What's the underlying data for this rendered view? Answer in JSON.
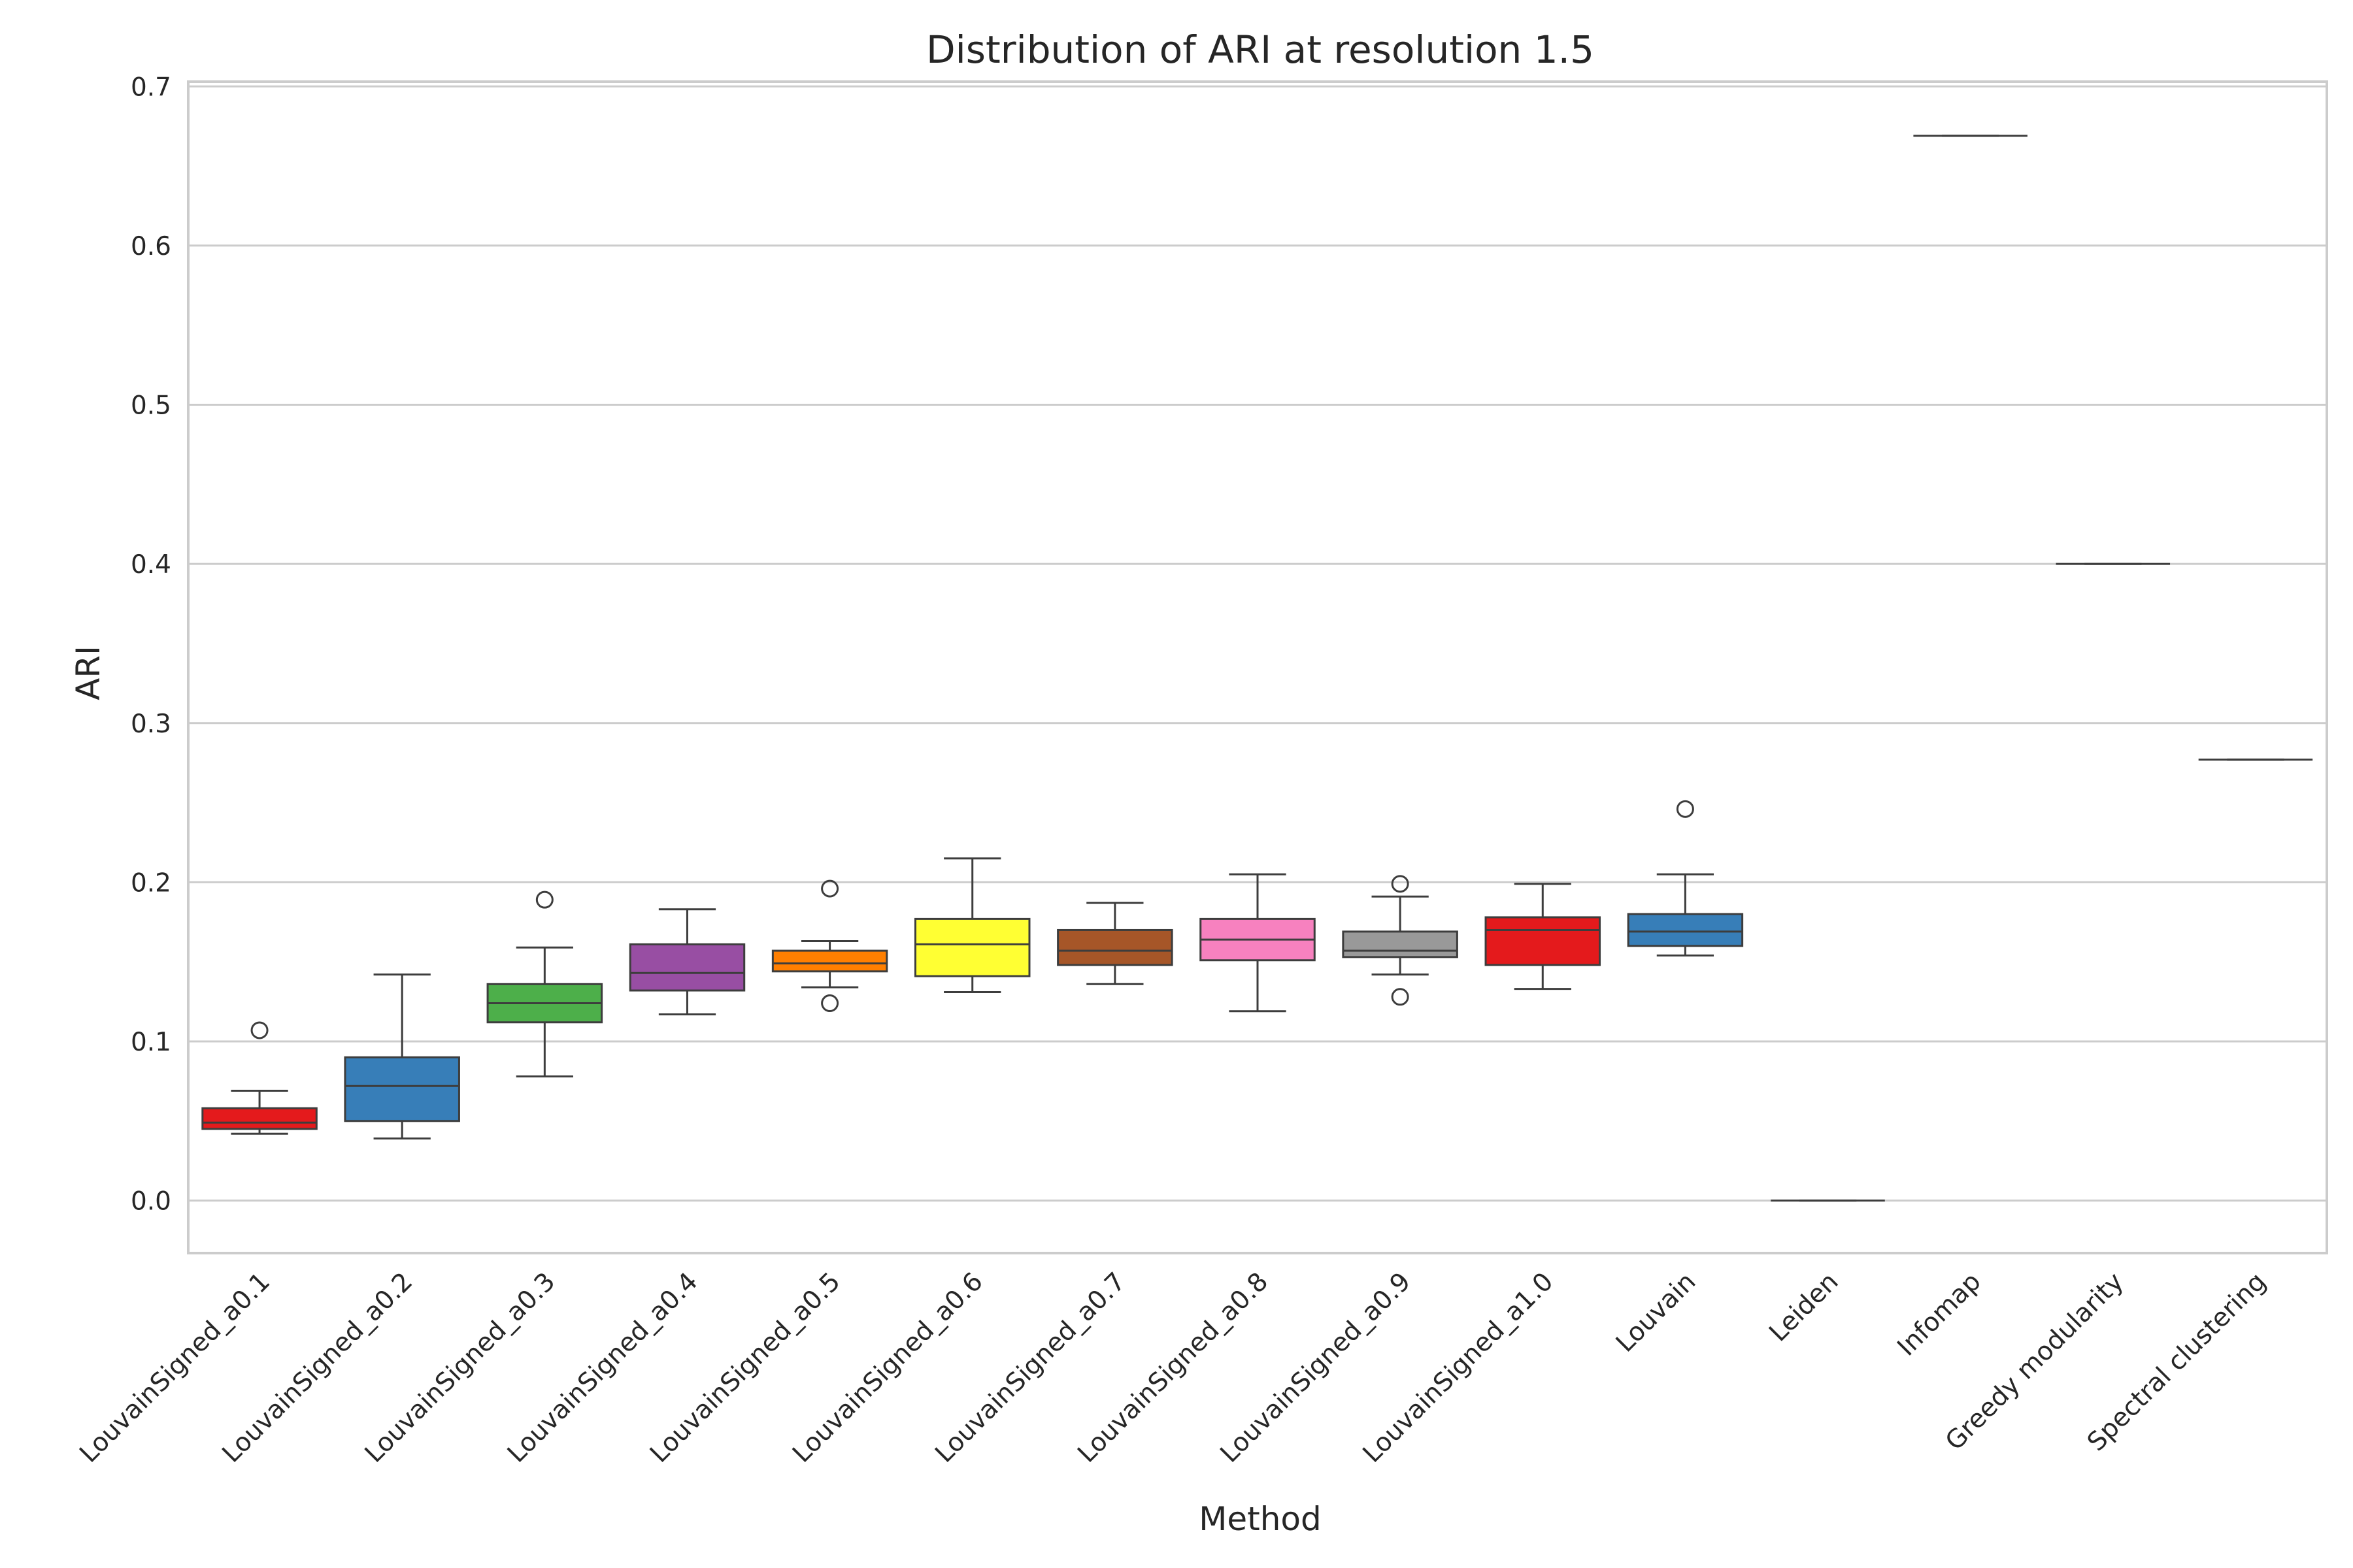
{
  "chart_data": {
    "type": "box",
    "title": "Distribution of ARI at resolution 1.5",
    "xlabel": "Method",
    "ylabel": "ARI",
    "ylim": [
      -0.033,
      0.703
    ],
    "yticks": [
      0.0,
      0.1,
      0.2,
      0.3,
      0.4,
      0.5,
      0.6,
      0.7
    ],
    "ytick_labels": [
      "0.0",
      "0.1",
      "0.2",
      "0.3",
      "0.4",
      "0.5",
      "0.6",
      "0.7"
    ],
    "grid": "horizontal",
    "categories": [
      "LouvainSigned_a0.1",
      "LouvainSigned_a0.2",
      "LouvainSigned_a0.3",
      "LouvainSigned_a0.4",
      "LouvainSigned_a0.5",
      "LouvainSigned_a0.6",
      "LouvainSigned_a0.7",
      "LouvainSigned_a0.8",
      "LouvainSigned_a0.9",
      "LouvainSigned_a1.0",
      "Louvain",
      "Leiden",
      "Infomap",
      "Greedy modularity",
      "Spectral clustering"
    ],
    "boxes": [
      {
        "min": 0.042,
        "q1": 0.045,
        "median": 0.049,
        "q3": 0.058,
        "max": 0.069,
        "outliers": [
          0.107
        ],
        "color": "#e41a1c"
      },
      {
        "min": 0.039,
        "q1": 0.05,
        "median": 0.072,
        "q3": 0.09,
        "max": 0.142,
        "outliers": [],
        "color": "#377eb8"
      },
      {
        "min": 0.078,
        "q1": 0.112,
        "median": 0.124,
        "q3": 0.136,
        "max": 0.159,
        "outliers": [
          0.189
        ],
        "color": "#4daf4a"
      },
      {
        "min": 0.117,
        "q1": 0.132,
        "median": 0.143,
        "q3": 0.161,
        "max": 0.183,
        "outliers": [],
        "color": "#984ea3"
      },
      {
        "min": 0.134,
        "q1": 0.144,
        "median": 0.149,
        "q3": 0.157,
        "max": 0.163,
        "outliers": [
          0.196,
          0.124
        ],
        "color": "#ff7f00"
      },
      {
        "min": 0.131,
        "q1": 0.141,
        "median": 0.161,
        "q3": 0.177,
        "max": 0.215,
        "outliers": [],
        "color": "#ffff33"
      },
      {
        "min": 0.136,
        "q1": 0.148,
        "median": 0.157,
        "q3": 0.17,
        "max": 0.187,
        "outliers": [],
        "color": "#a65628"
      },
      {
        "min": 0.119,
        "q1": 0.151,
        "median": 0.164,
        "q3": 0.177,
        "max": 0.205,
        "outliers": [],
        "color": "#f781bf"
      },
      {
        "min": 0.142,
        "q1": 0.153,
        "median": 0.157,
        "q3": 0.169,
        "max": 0.191,
        "outliers": [
          0.199,
          0.128
        ],
        "color": "#999999"
      },
      {
        "min": 0.133,
        "q1": 0.148,
        "median": 0.17,
        "q3": 0.178,
        "max": 0.199,
        "outliers": [],
        "color": "#e41a1c"
      },
      {
        "min": 0.154,
        "q1": 0.16,
        "median": 0.169,
        "q3": 0.18,
        "max": 0.205,
        "outliers": [
          0.246
        ],
        "color": "#377eb8"
      },
      {
        "min": 0.0,
        "q1": 0.0,
        "median": 0.0,
        "q3": 0.0,
        "max": 0.0,
        "outliers": [],
        "color": "#4daf4a"
      },
      {
        "min": 0.669,
        "q1": 0.669,
        "median": 0.669,
        "q3": 0.669,
        "max": 0.669,
        "outliers": [],
        "color": "#984ea3"
      },
      {
        "min": 0.4,
        "q1": 0.4,
        "median": 0.4,
        "q3": 0.4,
        "max": 0.4,
        "outliers": [],
        "color": "#ff7f00"
      },
      {
        "min": 0.277,
        "q1": 0.277,
        "median": 0.277,
        "q3": 0.277,
        "max": 0.277,
        "outliers": [],
        "color": "#ffff33"
      }
    ]
  }
}
